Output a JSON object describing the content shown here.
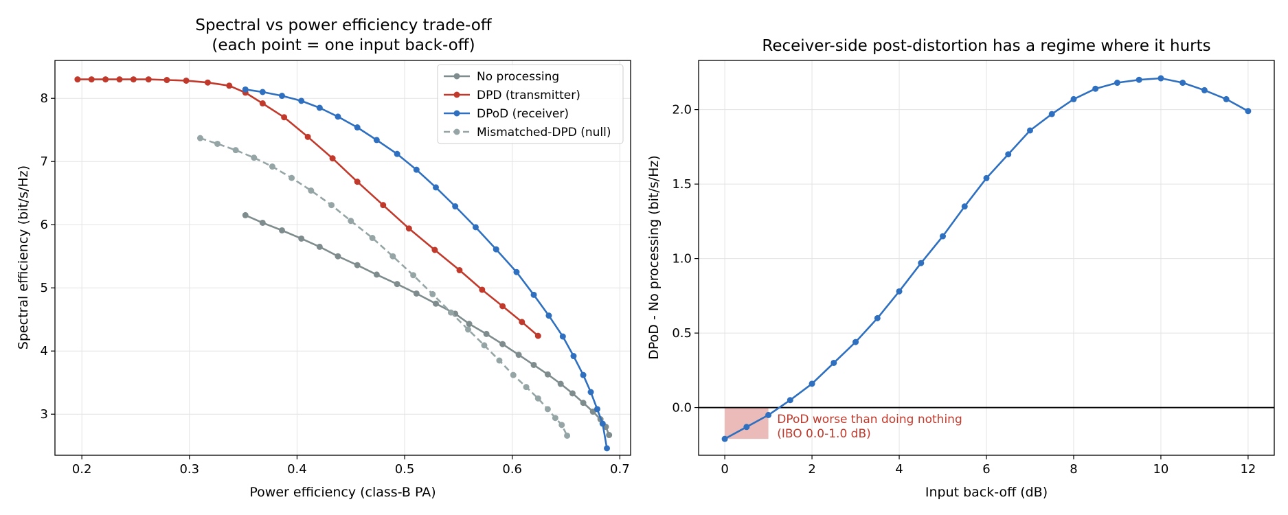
{
  "chart_data": [
    {
      "type": "line",
      "title": "Spectral vs power efficiency trade-off",
      "subtitle": "(each point = one input back-off)",
      "xlabel": "Power efficiency  (class-B PA)",
      "ylabel": "Spectral efficiency  (bit/s/Hz)",
      "xlim": [
        0.175,
        0.71
      ],
      "ylim": [
        2.35,
        8.6
      ],
      "xticks": [
        0.2,
        0.3,
        0.4,
        0.5,
        0.6,
        0.7
      ],
      "xtick_labels": [
        "0.2",
        "0.3",
        "0.4",
        "0.5",
        "0.6",
        "0.7"
      ],
      "yticks": [
        3,
        4,
        5,
        6,
        7,
        8
      ],
      "ytick_labels": [
        "3",
        "4",
        "5",
        "6",
        "7",
        "8"
      ],
      "grid": true,
      "legend_position": "top-right",
      "series": [
        {
          "name": "No processing",
          "color": "#7f8c8d",
          "dashed": false,
          "x": [
            0.352,
            0.368,
            0.386,
            0.404,
            0.421,
            0.438,
            0.456,
            0.474,
            0.493,
            0.511,
            0.529,
            0.547,
            0.56,
            0.576,
            0.591,
            0.606,
            0.62,
            0.633,
            0.645,
            0.656,
            0.666,
            0.675,
            0.682,
            0.687,
            0.69
          ],
          "y": [
            6.15,
            6.03,
            5.91,
            5.78,
            5.65,
            5.5,
            5.36,
            5.21,
            5.06,
            4.91,
            4.75,
            4.59,
            4.43,
            4.27,
            4.11,
            3.94,
            3.78,
            3.63,
            3.48,
            3.33,
            3.18,
            3.04,
            2.92,
            2.8,
            2.67
          ]
        },
        {
          "name": "DPD (transmitter)",
          "color": "#c0392b",
          "dashed": false,
          "x": [
            0.196,
            0.209,
            0.222,
            0.235,
            0.248,
            0.262,
            0.279,
            0.297,
            0.317,
            0.337,
            0.352,
            0.368,
            0.388,
            0.41,
            0.433,
            0.456,
            0.48,
            0.504,
            0.528,
            0.551,
            0.572,
            0.591,
            0.609,
            0.624
          ],
          "y": [
            8.3,
            8.3,
            8.3,
            8.3,
            8.3,
            8.3,
            8.29,
            8.28,
            8.25,
            8.2,
            8.09,
            7.92,
            7.7,
            7.39,
            7.05,
            6.68,
            6.31,
            5.94,
            5.6,
            5.28,
            4.97,
            4.71,
            4.46,
            4.24
          ]
        },
        {
          "name": "DPoD (receiver)",
          "color": "#2e6fbf",
          "dashed": false,
          "x": [
            0.352,
            0.368,
            0.386,
            0.404,
            0.421,
            0.438,
            0.456,
            0.474,
            0.493,
            0.511,
            0.529,
            0.547,
            0.566,
            0.585,
            0.604,
            0.62,
            0.634,
            0.647,
            0.657,
            0.666,
            0.673,
            0.679,
            0.684,
            0.688
          ],
          "y": [
            8.14,
            8.1,
            8.04,
            7.96,
            7.85,
            7.71,
            7.54,
            7.34,
            7.12,
            6.87,
            6.59,
            6.29,
            5.96,
            5.61,
            5.25,
            4.89,
            4.56,
            4.23,
            3.92,
            3.62,
            3.35,
            3.08,
            2.85,
            2.46
          ]
        },
        {
          "name": "Mismatched-DPD (null)",
          "color": "#95a5a6",
          "dashed": true,
          "x": [
            0.31,
            0.326,
            0.343,
            0.36,
            0.377,
            0.395,
            0.413,
            0.432,
            0.45,
            0.47,
            0.489,
            0.508,
            0.526,
            0.543,
            0.559,
            0.574,
            0.588,
            0.601,
            0.613,
            0.624,
            0.633,
            0.64,
            0.646,
            0.651
          ],
          "y": [
            7.37,
            7.28,
            7.18,
            7.06,
            6.92,
            6.74,
            6.54,
            6.31,
            6.06,
            5.79,
            5.5,
            5.2,
            4.9,
            4.61,
            4.34,
            4.09,
            3.85,
            3.62,
            3.43,
            3.25,
            3.08,
            2.94,
            2.83,
            2.66
          ]
        }
      ]
    },
    {
      "type": "line",
      "title": "Receiver-side post-distortion has a regime where it hurts",
      "xlabel": "Input back-off (dB)",
      "ylabel": "DPoD - No processing  (bit/s/Hz)",
      "xlim": [
        -0.6,
        12.6
      ],
      "ylim": [
        -0.32,
        2.33
      ],
      "xticks": [
        0,
        2,
        4,
        6,
        8,
        10,
        12
      ],
      "xtick_labels": [
        "0",
        "2",
        "4",
        "6",
        "8",
        "10",
        "12"
      ],
      "yticks": [
        0.0,
        0.5,
        1.0,
        1.5,
        2.0
      ],
      "ytick_labels": [
        "0.0",
        "0.5",
        "1.0",
        "1.5",
        "2.0"
      ],
      "grid": true,
      "hline": 0,
      "series": [
        {
          "color": "#2e6fbf",
          "x": [
            0,
            0.5,
            1,
            1.5,
            2,
            2.5,
            3,
            3.5,
            4,
            4.5,
            5,
            5.5,
            6,
            6.5,
            7,
            7.5,
            8,
            8.5,
            9,
            9.5,
            10,
            10.5,
            11,
            11.5,
            12
          ],
          "y": [
            -0.21,
            -0.13,
            -0.05,
            0.05,
            0.16,
            0.3,
            0.44,
            0.6,
            0.78,
            0.97,
            1.15,
            1.35,
            1.54,
            1.7,
            1.86,
            1.97,
            2.07,
            2.14,
            2.18,
            2.2,
            2.21,
            2.18,
            2.13,
            2.07,
            1.99
          ]
        }
      ],
      "shaded_region": {
        "x_from": 0,
        "x_to": 1.0,
        "color": "#e8b4b0"
      },
      "annotation": {
        "lines": [
          "DPoD worse than doing nothing",
          "(IBO 0.0-1.0 dB)"
        ],
        "color": "#c0392b",
        "x": 1.2,
        "y": -0.09
      }
    }
  ]
}
